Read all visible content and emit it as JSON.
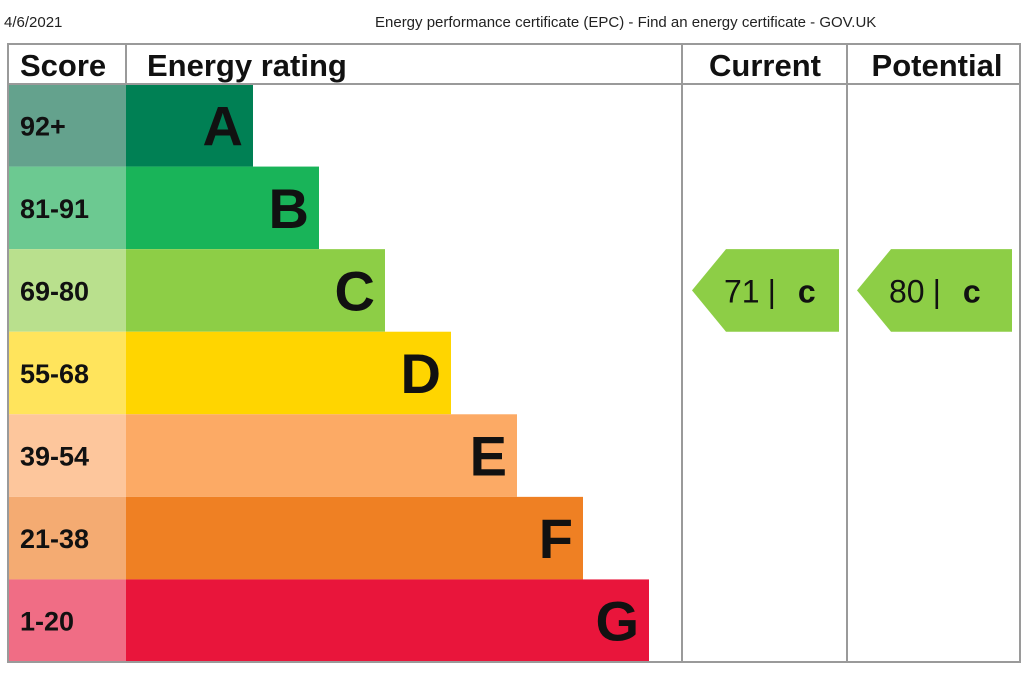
{
  "print_header": {
    "date": "4/6/2021",
    "title": "Energy performance certificate (EPC) - Find an energy certificate - GOV.UK"
  },
  "chart_data": {
    "type": "bar",
    "columns": {
      "score": "Score",
      "rating": "Energy rating",
      "current": "Current",
      "potential": "Potential"
    },
    "bands": [
      {
        "letter": "A",
        "range": "92+",
        "min": 92,
        "color": "#008054",
        "score_color": "#64a28d"
      },
      {
        "letter": "B",
        "range": "81-91",
        "min": 81,
        "color": "#19b459",
        "score_color": "#6cc991"
      },
      {
        "letter": "C",
        "range": "69-80",
        "min": 69,
        "color": "#8dce46",
        "score_color": "#b9e08d"
      },
      {
        "letter": "D",
        "range": "55-68",
        "min": 55,
        "color": "#ffd500",
        "score_color": "#ffe45c"
      },
      {
        "letter": "E",
        "range": "39-54",
        "min": 39,
        "color": "#fcaa65",
        "score_color": "#fdc69c"
      },
      {
        "letter": "F",
        "range": "21-38",
        "min": 21,
        "color": "#ef8023",
        "score_color": "#f4ab72"
      },
      {
        "letter": "G",
        "range": "1-20",
        "min": 1,
        "color": "#e9153b",
        "score_color": "#f06d85"
      }
    ],
    "current": {
      "value": 71,
      "separator": "|",
      "letter": "c",
      "band": "C",
      "color": "#8dce46"
    },
    "potential": {
      "value": 80,
      "separator": "|",
      "letter": "c",
      "band": "C",
      "color": "#8dce46"
    }
  }
}
